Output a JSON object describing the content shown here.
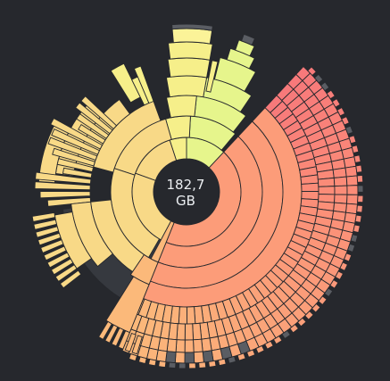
{
  "disk_usage": {
    "total_value": "182,7",
    "total_unit": "GB"
  },
  "colors": {
    "background": "#26282d",
    "yellow": "#f6ef8a",
    "yellow_light": "#fbf398",
    "lime": "#e6f58c",
    "gold": "#f8d987",
    "orange_light": "#fbb97a",
    "salmon": "#fc9c79",
    "coral": "#fb8a78",
    "red": "#f7797a",
    "free_space": "#5a5d63",
    "track": "#36393f"
  }
}
